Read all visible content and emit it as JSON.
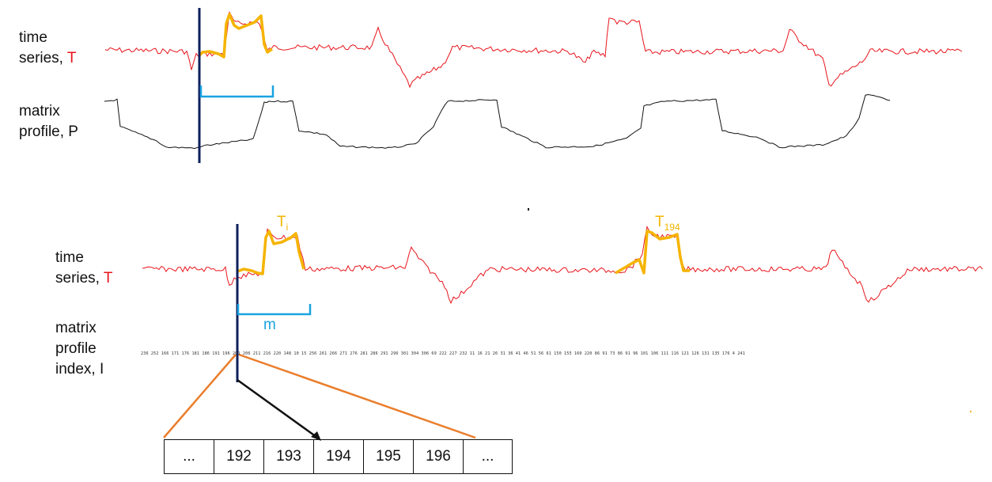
{
  "top": {
    "time_series_label": [
      "time",
      "series, "
    ],
    "time_series_symbol": "T",
    "profile_label": [
      "matrix",
      "profile, P"
    ]
  },
  "bottom": {
    "time_series_label": [
      "time",
      "series, "
    ],
    "time_series_symbol": "T",
    "index_label": [
      "matrix",
      "profile",
      "index, I"
    ],
    "window_label": "m",
    "subseq_i": {
      "base": "T",
      "sub": "i"
    },
    "subseq_194": {
      "base": "T",
      "sub": "194"
    },
    "index_values": "236 252 166 171 176 181 186 191 196 201 206 211 216 220 148 10 15 256 261 266 271 276 281 286 291 296 301 304 306 69 222 227 232 11 16 21 26 31 36 41 46 51 56 61 150 155 160 220 86 91 73 86 91 96 101 106 111 116 121 126 131 135 176 4 241",
    "cells": [
      "...",
      "192",
      "193",
      "194",
      "195",
      "196",
      "..."
    ]
  },
  "colors": {
    "series": "#e8141b",
    "highlight": "#f5b400",
    "cursor": "#0d1f5c",
    "window": "#19a3e0",
    "zoom": "#ea7d2b",
    "profile": "#111111"
  }
}
